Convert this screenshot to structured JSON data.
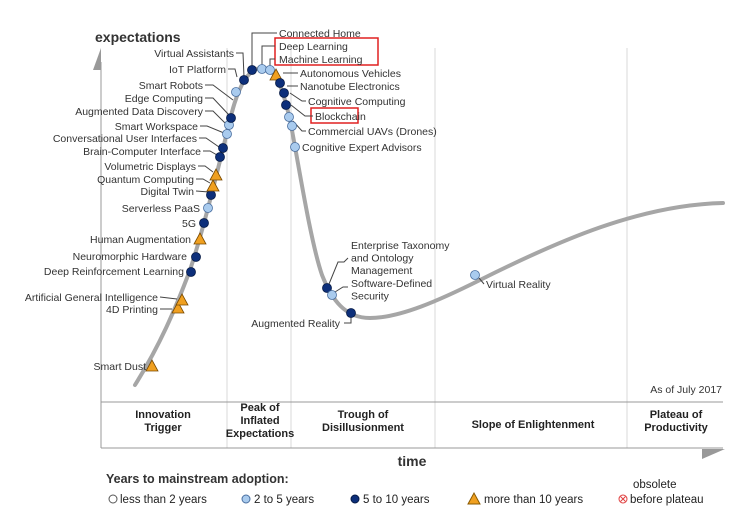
{
  "axes": {
    "y_label": "expectations",
    "x_label": "time"
  },
  "as_of": "As of July 2017",
  "phases": [
    {
      "lines": [
        "Innovation",
        "Trigger"
      ]
    },
    {
      "lines": [
        "Peak of",
        "Inflated",
        "Expectations"
      ]
    },
    {
      "lines": [
        "Trough of",
        "Disillusionment"
      ]
    },
    {
      "lines": [
        "Slope of Enlightenment"
      ]
    },
    {
      "lines": [
        "Plateau of",
        "Productivity"
      ]
    }
  ],
  "legend": {
    "title": "Years to mainstream adoption:",
    "items": [
      {
        "label": "less than 2 years",
        "symbol": "white-circle"
      },
      {
        "label": "2 to 5 years",
        "symbol": "light-blue-circle"
      },
      {
        "label": "5 to 10 years",
        "symbol": "dark-blue-circle"
      },
      {
        "label": "more than 10 years",
        "symbol": "orange-triangle"
      }
    ],
    "obsolete": [
      "obsolete",
      "before plateau"
    ]
  },
  "colors": {
    "light": "#a9cbee",
    "dark": "#0d2f7a",
    "triangle": "#f0a020",
    "curve": "#a6a6a6",
    "highlight": "#e02020",
    "obsolete": "#e04040"
  },
  "technologies": [
    {
      "name": "Smart Dust",
      "cat": "tri"
    },
    {
      "name": "4D Printing",
      "cat": "tri"
    },
    {
      "name": "Artificial General Intelligence",
      "cat": "tri"
    },
    {
      "name": "Deep Reinforcement Learning",
      "cat": "dark"
    },
    {
      "name": "Neuromorphic Hardware",
      "cat": "dark"
    },
    {
      "name": "Human Augmentation",
      "cat": "tri"
    },
    {
      "name": "5G",
      "cat": "dark"
    },
    {
      "name": "Serverless PaaS",
      "cat": "light"
    },
    {
      "name": "Digital Twin",
      "cat": "dark"
    },
    {
      "name": "Quantum Computing",
      "cat": "tri"
    },
    {
      "name": "Volumetric Displays",
      "cat": "tri"
    },
    {
      "name": "Brain-Computer Interface",
      "cat": "dark"
    },
    {
      "name": "Conversational User Interfaces",
      "cat": "dark"
    },
    {
      "name": "Smart Workspace",
      "cat": "light"
    },
    {
      "name": "Augmented Data Discovery",
      "cat": "light"
    },
    {
      "name": "Edge Computing",
      "cat": "dark"
    },
    {
      "name": "Smart Robots",
      "cat": "light"
    },
    {
      "name": "IoT Platform",
      "cat": "dark"
    },
    {
      "name": "Virtual Assistants",
      "cat": "dark"
    },
    {
      "name": "Connected Home",
      "cat": "light"
    },
    {
      "name": "Deep Learning",
      "cat": "light"
    },
    {
      "name": "Machine Learning",
      "cat": "tri"
    },
    {
      "name": "Autonomous Vehicles",
      "cat": "dark"
    },
    {
      "name": "Nanotube Electronics",
      "cat": "dark"
    },
    {
      "name": "Cognitive Computing",
      "cat": "dark"
    },
    {
      "name": "Blockchain",
      "cat": "light"
    },
    {
      "name": "Commercial UAVs (Drones)",
      "cat": "light"
    },
    {
      "name": "Cognitive Expert Advisors",
      "cat": "light"
    },
    {
      "name": "Enterprise Taxonomy and Ontology Management",
      "lines": [
        "Enterprise Taxonomy",
        "and Ontology",
        "Management"
      ],
      "cat": "dark"
    },
    {
      "name": "Software-Defined Security",
      "lines": [
        "Software-Defined",
        "Security"
      ],
      "cat": "light"
    },
    {
      "name": "Augmented Reality",
      "cat": "dark"
    },
    {
      "name": "Virtual Reality",
      "cat": "light"
    }
  ],
  "highlighted": [
    "Deep Learning",
    "Machine Learning",
    "Blockchain"
  ]
}
